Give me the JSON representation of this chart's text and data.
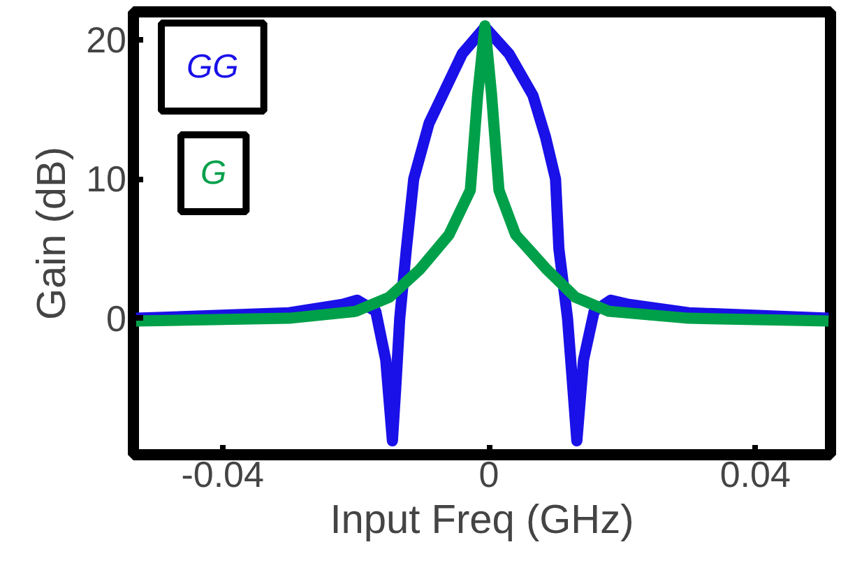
{
  "chart_data": {
    "type": "line",
    "xlabel": "Input Freq (GHz)",
    "ylabel": "Gain (dB)",
    "xlim": [
      -0.0534,
      0.0513
    ],
    "ylim": [
      -9.8,
      22
    ],
    "xticks": [
      -0.04,
      0,
      0.04
    ],
    "yticks": [
      0,
      10,
      20
    ],
    "grid": false,
    "legend": "top left",
    "marker": "none",
    "line_style": "solid",
    "series": [
      {
        "name": "GG",
        "color": "#1a10e8",
        "x": [
          -0.053,
          -0.03,
          -0.022,
          -0.0198,
          -0.017,
          -0.0155,
          -0.0145,
          -0.014,
          -0.0134,
          -0.0124,
          -0.0113,
          -0.009,
          -0.007,
          -0.004,
          -0.0006,
          0.003,
          0.0066,
          0.0085,
          0.01,
          0.0105,
          0.0118,
          0.0126,
          0.0132,
          0.0142,
          0.0158,
          0.0183,
          0.021,
          0.03,
          0.051
        ],
        "values": [
          0,
          0.4,
          1.0,
          1.3,
          0.5,
          -3,
          -8.8,
          -5,
          0,
          5,
          10,
          14,
          16,
          19,
          20.9,
          19,
          16,
          13,
          10,
          5,
          0,
          -5,
          -8.8,
          -3,
          0.5,
          1.3,
          1.0,
          0.4,
          0
        ]
      },
      {
        "name": "G",
        "color": "#00a04a",
        "x": [
          -0.053,
          -0.03,
          -0.02,
          -0.015,
          -0.0104,
          -0.006,
          -0.0028,
          -0.0017,
          -0.0006,
          0.0004,
          0.0015,
          0.004,
          0.0087,
          0.013,
          0.018,
          0.03,
          0.051
        ],
        "values": [
          -0.2,
          0,
          0.5,
          1.5,
          3.5,
          6,
          9.2,
          16,
          21,
          16,
          9.2,
          6,
          3.5,
          1.5,
          0.5,
          0,
          -0.2
        ]
      }
    ]
  }
}
